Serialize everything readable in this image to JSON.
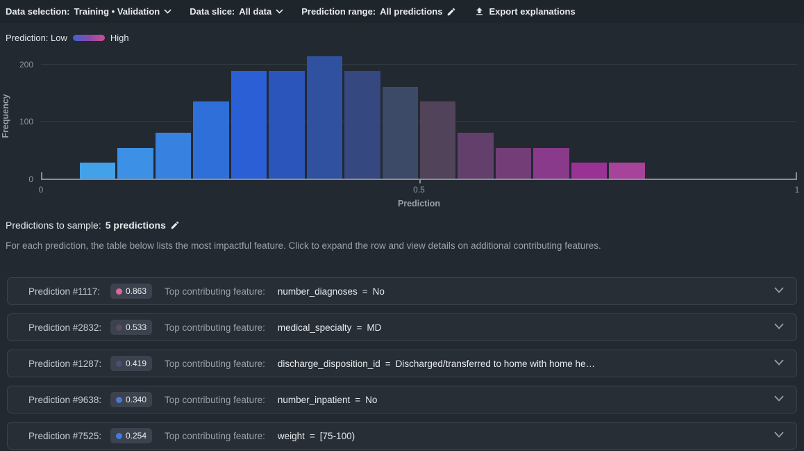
{
  "toolbar": {
    "data_selection_label": "Data selection:",
    "data_selection_value": "Training • Validation",
    "data_slice_label": "Data slice:",
    "data_slice_value": "All data",
    "prediction_range_label": "Prediction range:",
    "prediction_range_value": "All predictions",
    "export_label": "Export explanations"
  },
  "legend": {
    "label": "Prediction: Low",
    "high_label": "High",
    "gradient": [
      "#3D63D8",
      "#8A4AA8",
      "#CD4E93"
    ]
  },
  "chart_data": {
    "type": "bar",
    "xlabel": "Prediction",
    "ylabel": "Frequency",
    "xlim": [
      0,
      1
    ],
    "ylim": [
      0,
      220
    ],
    "grid": true,
    "bin_width": 0.05,
    "bin_starts": [
      0.05,
      0.1,
      0.15,
      0.2,
      0.25,
      0.3,
      0.35,
      0.4,
      0.45,
      0.5,
      0.55,
      0.6,
      0.65,
      0.7,
      0.75
    ],
    "values": [
      28,
      53,
      80,
      134,
      187,
      187,
      213,
      187,
      159,
      134,
      80,
      53,
      53,
      28,
      28
    ],
    "colors": [
      "#42A1E9",
      "#3C90E5",
      "#3782E0",
      "#2F6FDA",
      "#2A5FD5",
      "#2C55BB",
      "#30519F",
      "#364880",
      "#3D4A67",
      "#51445A",
      "#633F6B",
      "#733E77",
      "#8A3A8A",
      "#9A3295",
      "#A8439C"
    ],
    "x_ticks": [
      {
        "value": 0,
        "label": "0"
      },
      {
        "value": 0.5,
        "label": "0.5"
      },
      {
        "value": 1,
        "label": "1"
      }
    ],
    "y_ticks": [
      {
        "value": 0,
        "label": "0"
      },
      {
        "value": 100,
        "label": "100"
      },
      {
        "value": 200,
        "label": "200"
      }
    ]
  },
  "sample": {
    "label": "Predictions to sample:",
    "value": "5 predictions",
    "description": "For each prediction, the table below lists the most impactful feature. Click to expand the row and view details on additional contributing features."
  },
  "predictions": [
    {
      "id_label": "Prediction #1117:",
      "score": "0.863",
      "dot_color": "#DB679E",
      "top_label": "Top contributing feature:",
      "feature": "number_diagnoses",
      "operator": "=",
      "value": "No"
    },
    {
      "id_label": "Prediction #2832:",
      "score": "0.533",
      "dot_color": "#5A4A60",
      "top_label": "Top contributing feature:",
      "feature": "medical_specialty",
      "operator": "=",
      "value": "MD"
    },
    {
      "id_label": "Prediction #1287:",
      "score": "0.419",
      "dot_color": "#495070",
      "top_label": "Top contributing feature:",
      "feature": "discharge_disposition_id",
      "operator": "=",
      "value": "Discharged/transferred to home with home he…"
    },
    {
      "id_label": "Prediction #9638:",
      "score": "0.340",
      "dot_color": "#4A77D4",
      "top_label": "Top contributing feature:",
      "feature": "number_inpatient",
      "operator": "=",
      "value": "No"
    },
    {
      "id_label": "Prediction #7525:",
      "score": "0.254",
      "dot_color": "#3F7CE2",
      "top_label": "Top contributing feature:",
      "feature": "weight",
      "operator": "=",
      "value": "[75-100)"
    }
  ],
  "icons": {
    "dropdown": "chevron-down",
    "edit": "pencil",
    "export": "upload-arrow",
    "expand_row": "chevron-down"
  }
}
